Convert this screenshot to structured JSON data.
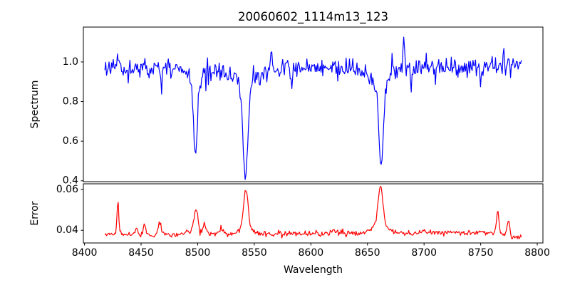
{
  "window": {
    "kind": "matplotlib-figure"
  },
  "chart_data": {
    "type": "line",
    "title": "20060602_1114m13_123",
    "xlabel": "Wavelength",
    "background": "#ffffff",
    "frame_color": "#000000",
    "text_color": "#000000",
    "grid": false,
    "legend": "none",
    "x_axis": {
      "lim": [
        8399,
        8805
      ],
      "ticks": [
        {
          "v": 8400,
          "label": "8400"
        },
        {
          "v": 8450,
          "label": "8450"
        },
        {
          "v": 8500,
          "label": "8500"
        },
        {
          "v": 8550,
          "label": "8550"
        },
        {
          "v": 8600,
          "label": "8600"
        },
        {
          "v": 8650,
          "label": "8650"
        },
        {
          "v": 8700,
          "label": "8700"
        },
        {
          "v": 8750,
          "label": "8750"
        },
        {
          "v": 8800,
          "label": "8800"
        }
      ]
    },
    "panels": [
      {
        "name": "spectrum",
        "ylabel": "Spectrum",
        "color": "#0000ff",
        "ylim": [
          0.3955,
          1.176
        ],
        "yticks": [
          {
            "v": 0.4,
            "label": "0.4"
          },
          {
            "v": 0.6,
            "label": "0.6"
          },
          {
            "v": 0.8,
            "label": "0.8"
          },
          {
            "v": 1.0,
            "label": "1.0"
          }
        ],
        "generator": {
          "seed": 11,
          "n": 500,
          "x_start": 8418,
          "x_end": 8786,
          "noise_sigma": 0.023,
          "noise_spike_prob": 0.025,
          "noise_spike_scale": 2.1,
          "continuum_trend": [
            [
              8418,
              0.985
            ],
            [
              8435,
              0.966
            ],
            [
              8455,
              0.972
            ],
            [
              8475,
              0.968
            ],
            [
              8495,
              0.962
            ],
            [
              8520,
              0.96
            ],
            [
              8545,
              0.963
            ],
            [
              8565,
              0.972
            ],
            [
              8585,
              0.968
            ],
            [
              8605,
              0.966
            ],
            [
              8625,
              0.963
            ],
            [
              8645,
              0.958
            ],
            [
              8665,
              0.963
            ],
            [
              8685,
              0.972
            ],
            [
              8705,
              0.967
            ],
            [
              8725,
              0.964
            ],
            [
              8745,
              0.973
            ],
            [
              8765,
              0.974
            ],
            [
              8786,
              0.99
            ]
          ],
          "absorption_lines": [
            {
              "center": 8498.0,
              "core_depth": 0.37,
              "core_sigma": 1.7,
              "wing_depth": 0.055,
              "wing_sigma": 6.0
            },
            {
              "center": 8542.1,
              "core_depth": 0.465,
              "core_sigma": 2.1,
              "wing_depth": 0.08,
              "wing_sigma": 10.0
            },
            {
              "center": 8662.1,
              "core_depth": 0.425,
              "core_sigma": 1.9,
              "wing_depth": 0.068,
              "wing_sigma": 8.0
            },
            {
              "center": 8583.0,
              "core_depth": 0.1,
              "core_sigma": 0.7,
              "wing_depth": 0,
              "wing_sigma": 1
            },
            {
              "center": 8688.5,
              "core_depth": 0.11,
              "core_sigma": 0.7,
              "wing_depth": 0,
              "wing_sigma": 1
            },
            {
              "center": 8468.0,
              "core_depth": 0.07,
              "core_sigma": 0.9,
              "wing_depth": 0,
              "wing_sigma": 1
            },
            {
              "center": 8750.0,
              "core_depth": 0.06,
              "core_sigma": 0.8,
              "wing_depth": 0,
              "wing_sigma": 1
            }
          ],
          "emission_spikes": [
            {
              "center": 8565.0,
              "height": 0.155,
              "sigma": 0.55
            },
            {
              "center": 8682.0,
              "height": 0.165,
              "sigma": 0.6
            },
            {
              "center": 8770.5,
              "height": 0.09,
              "sigma": 0.5
            },
            {
              "center": 8430.0,
              "height": 0.07,
              "sigma": 0.5
            }
          ]
        }
      },
      {
        "name": "error",
        "ylabel": "Error",
        "color": "#ff0000",
        "ylim": [
          0.0338,
          0.0627
        ],
        "yticks": [
          {
            "v": 0.04,
            "label": "0.04"
          },
          {
            "v": 0.06,
            "label": "0.06"
          }
        ],
        "generator": {
          "seed": 5,
          "n": 500,
          "x_start": 8418,
          "x_end": 8786,
          "noise_sigma": 0.00062,
          "noise_spike_prob": 0.02,
          "noise_spike_scale": 1.8,
          "baseline_trend": [
            [
              8418,
              0.0378
            ],
            [
              8445,
              0.0379
            ],
            [
              8475,
              0.0378
            ],
            [
              8500,
              0.0382
            ],
            [
              8530,
              0.0381
            ],
            [
              8560,
              0.0382
            ],
            [
              8590,
              0.0383
            ],
            [
              8620,
              0.0384
            ],
            [
              8650,
              0.0385
            ],
            [
              8680,
              0.0386
            ],
            [
              8710,
              0.0388
            ],
            [
              8735,
              0.039
            ],
            [
              8755,
              0.039
            ],
            [
              8770,
              0.0384
            ],
            [
              8779,
              0.0362
            ],
            [
              8786,
              0.0372
            ]
          ],
          "peaks": [
            {
              "center": 8429.5,
              "height": 0.0163,
              "sigma": 0.8
            },
            {
              "center": 8446.0,
              "height": 0.0028,
              "sigma": 1.0
            },
            {
              "center": 8453.0,
              "height": 0.0046,
              "sigma": 1.0
            },
            {
              "center": 8466.5,
              "height": 0.0055,
              "sigma": 1.5
            },
            {
              "center": 8490.0,
              "height": 0.002,
              "sigma": 1.5
            },
            {
              "center": 8498.5,
              "height": 0.0122,
              "sigma": 1.9
            },
            {
              "center": 8506.0,
              "height": 0.0044,
              "sigma": 1.5
            },
            {
              "center": 8521.0,
              "height": 0.0028,
              "sigma": 1.6
            },
            {
              "center": 8542.5,
              "height": 0.0183,
              "sigma": 1.9
            },
            {
              "center": 8542.5,
              "height": 0.0034,
              "sigma": 6.0
            },
            {
              "center": 8620.0,
              "height": 0.0018,
              "sigma": 2.0
            },
            {
              "center": 8661.5,
              "height": 0.0192,
              "sigma": 2.1
            },
            {
              "center": 8661.5,
              "height": 0.004,
              "sigma": 7.0
            },
            {
              "center": 8700.0,
              "height": 0.0014,
              "sigma": 2.0
            },
            {
              "center": 8765.0,
              "height": 0.0102,
              "sigma": 1.1
            },
            {
              "center": 8774.5,
              "height": 0.0078,
              "sigma": 1.2
            }
          ]
        }
      }
    ]
  }
}
